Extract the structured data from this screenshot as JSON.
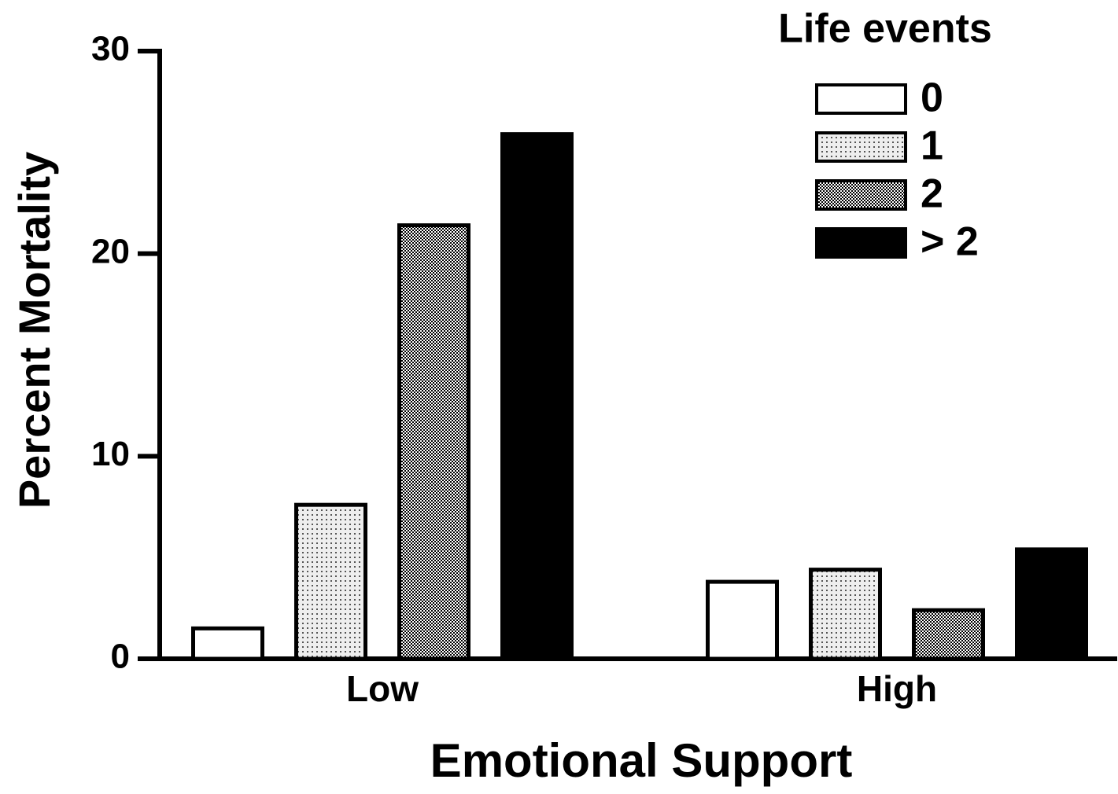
{
  "chart_data": {
    "type": "bar",
    "xlabel": "Emotional Support",
    "ylabel": "Percent Mortality",
    "legend_title": "Life events",
    "categories": [
      "Low",
      "High"
    ],
    "series": [
      {
        "name": "0",
        "color": "#ffffff",
        "values": [
          1.5,
          3.8
        ]
      },
      {
        "name": "1",
        "color": "#eeeeee",
        "values": [
          7.6,
          4.4
        ]
      },
      {
        "name": "2",
        "color": "#777777",
        "values": [
          21.4,
          2.4
        ]
      },
      {
        "name": "> 2",
        "color": "#000000",
        "values": [
          25.9,
          5.4
        ]
      }
    ],
    "ylim": [
      0,
      30
    ],
    "yticks": [
      0,
      10,
      20,
      30
    ],
    "legend": "upper right"
  }
}
